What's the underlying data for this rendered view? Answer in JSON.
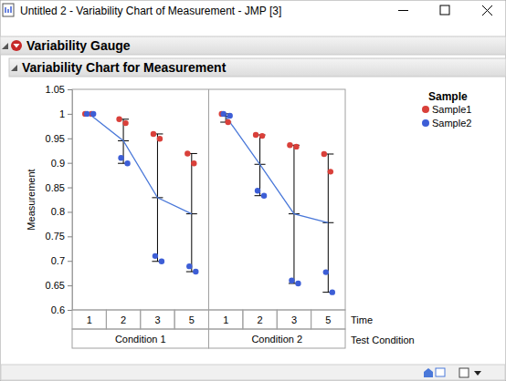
{
  "chart_data": {
    "type": "variability",
    "window_title": "Untitled 2 - Variability Chart of Measurement - JMP [3]",
    "report_title": "Variability Gauge",
    "title": "Variability Chart for Measurement",
    "ylabel": "Measurement",
    "xlabel": "Time",
    "group_label": "Test Condition",
    "groups": [
      "Condition 1",
      "Condition 2"
    ],
    "categories": [
      "1",
      "2",
      "3",
      "5"
    ],
    "ylim": [
      0.6,
      1.05
    ],
    "yticks": [
      0.6,
      0.65,
      0.7,
      0.75,
      0.8,
      0.85,
      0.9,
      0.95,
      1,
      1.05
    ],
    "legend_title": "Sample",
    "series": [
      {
        "name": "Sample1",
        "color": "#d9403a",
        "marker": "circle",
        "values": [
          [
            [
              1.0,
              1.0
            ],
            [
              0.989,
              0.981
            ],
            [
              0.959,
              0.949
            ],
            [
              0.919,
              0.899
            ]
          ],
          [
            [
              1.0,
              0.983
            ],
            [
              0.957,
              0.955
            ],
            [
              0.936,
              0.933
            ],
            [
              0.918,
              0.882
            ]
          ]
        ]
      },
      {
        "name": "Sample2",
        "color": "#3d5ed6",
        "marker": "circle",
        "values": [
          [
            [
              1.0,
              1.0
            ],
            [
              0.91,
              0.899
            ],
            [
              0.71,
              0.699
            ],
            [
              0.689,
              0.678
            ]
          ],
          [
            [
              1.0,
              0.996
            ],
            [
              0.843,
              0.833
            ],
            [
              0.66,
              0.654
            ],
            [
              0.677,
              0.636
            ]
          ]
        ]
      }
    ],
    "means": {
      "color": "#4a78d9",
      "values": [
        [
          1.0,
          0.945,
          0.829,
          0.796
        ],
        [
          0.995,
          0.897,
          0.796,
          0.778
        ]
      ]
    }
  }
}
